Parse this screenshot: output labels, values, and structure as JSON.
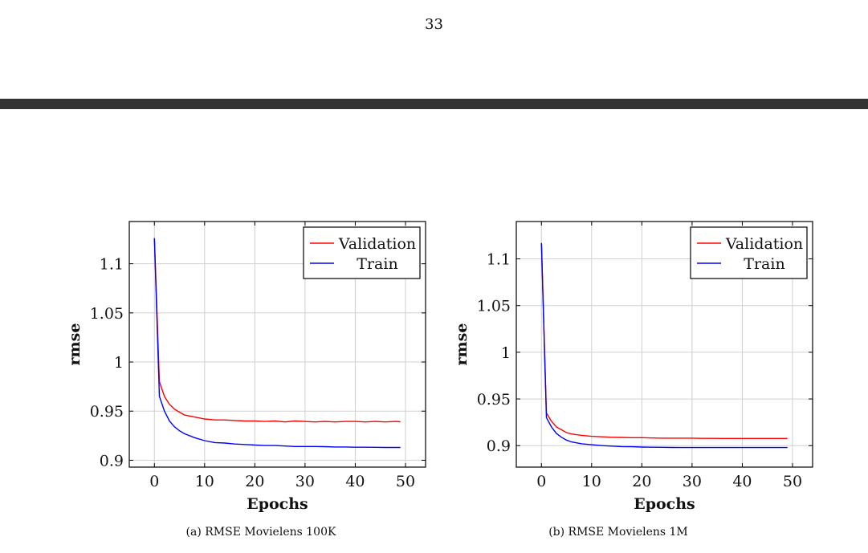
{
  "page": {
    "number": "33"
  },
  "chart_data": [
    {
      "type": "line",
      "caption": "(a) RMSE Movielens 100K",
      "xlabel": "Epochs",
      "ylabel": "rmse",
      "xlim": [
        -5,
        54
      ],
      "ylim": [
        0.893,
        1.143
      ],
      "xticks": [
        0,
        10,
        20,
        30,
        40,
        50
      ],
      "yticks": [
        0.9,
        0.95,
        1,
        1.05,
        1.1
      ],
      "ytick_labels": [
        "0.9",
        "0.95",
        "1",
        "1.05",
        "1.1"
      ],
      "grid": true,
      "legend_position": "top-right",
      "series": [
        {
          "name": "Validation",
          "color": "#ff0000",
          "x": [
            0,
            1,
            2,
            3,
            4,
            5,
            6,
            8,
            10,
            12,
            14,
            16,
            18,
            20,
            22,
            24,
            26,
            28,
            30,
            32,
            34,
            36,
            38,
            40,
            42,
            44,
            46,
            48,
            49
          ],
          "y": [
            1.126,
            0.98,
            0.965,
            0.957,
            0.952,
            0.949,
            0.946,
            0.944,
            0.942,
            0.941,
            0.941,
            0.9405,
            0.94,
            0.94,
            0.9395,
            0.94,
            0.939,
            0.94,
            0.9395,
            0.939,
            0.9395,
            0.939,
            0.9395,
            0.9395,
            0.939,
            0.9395,
            0.939,
            0.9395,
            0.9392
          ]
        },
        {
          "name": "Train",
          "color": "#0000ff",
          "x": [
            0,
            1,
            2,
            3,
            4,
            5,
            6,
            8,
            10,
            12,
            14,
            16,
            18,
            20,
            22,
            24,
            26,
            28,
            30,
            32,
            34,
            36,
            38,
            40,
            42,
            44,
            46,
            48,
            49
          ],
          "y": [
            1.126,
            0.965,
            0.95,
            0.94,
            0.934,
            0.93,
            0.927,
            0.923,
            0.92,
            0.918,
            0.9175,
            0.9165,
            0.916,
            0.9155,
            0.915,
            0.915,
            0.9145,
            0.914,
            0.914,
            0.914,
            0.9138,
            0.9135,
            0.9135,
            0.9133,
            0.9133,
            0.9132,
            0.913,
            0.913,
            0.913
          ]
        }
      ]
    },
    {
      "type": "line",
      "caption": "(b) RMSE Movielens 1M",
      "xlabel": "Epochs",
      "ylabel": "rmse",
      "xlim": [
        -5,
        54
      ],
      "ylim": [
        0.877,
        1.14
      ],
      "xticks": [
        0,
        10,
        20,
        30,
        40,
        50
      ],
      "yticks": [
        0.9,
        0.95,
        1,
        1.05,
        1.1
      ],
      "ytick_labels": [
        "0.9",
        "0.95",
        "1",
        "1.05",
        "1.1"
      ],
      "grid": true,
      "legend_position": "top-right",
      "series": [
        {
          "name": "Validation",
          "color": "#ff0000",
          "x": [
            0,
            1,
            2,
            3,
            4,
            5,
            6,
            8,
            10,
            12,
            14,
            16,
            18,
            20,
            22,
            24,
            26,
            28,
            30,
            32,
            34,
            36,
            38,
            40,
            42,
            44,
            46,
            48,
            49
          ],
          "y": [
            1.117,
            0.935,
            0.926,
            0.92,
            0.917,
            0.914,
            0.9125,
            0.911,
            0.91,
            0.9095,
            0.909,
            0.9088,
            0.9085,
            0.9085,
            0.9082,
            0.908,
            0.908,
            0.908,
            0.908,
            0.9078,
            0.9078,
            0.9077,
            0.9077,
            0.9077,
            0.9077,
            0.9077,
            0.9077,
            0.9077,
            0.9077
          ]
        },
        {
          "name": "Train",
          "color": "#0000ff",
          "x": [
            0,
            1,
            2,
            3,
            4,
            5,
            6,
            8,
            10,
            12,
            14,
            16,
            18,
            20,
            22,
            24,
            26,
            28,
            30,
            32,
            34,
            36,
            38,
            40,
            42,
            44,
            46,
            48,
            49
          ],
          "y": [
            1.117,
            0.93,
            0.92,
            0.913,
            0.909,
            0.906,
            0.904,
            0.902,
            0.901,
            0.9,
            0.8995,
            0.899,
            0.8988,
            0.8985,
            0.8983,
            0.8982,
            0.8981,
            0.898,
            0.898,
            0.898,
            0.898,
            0.898,
            0.898,
            0.898,
            0.898,
            0.898,
            0.898,
            0.898,
            0.898
          ]
        }
      ]
    }
  ]
}
